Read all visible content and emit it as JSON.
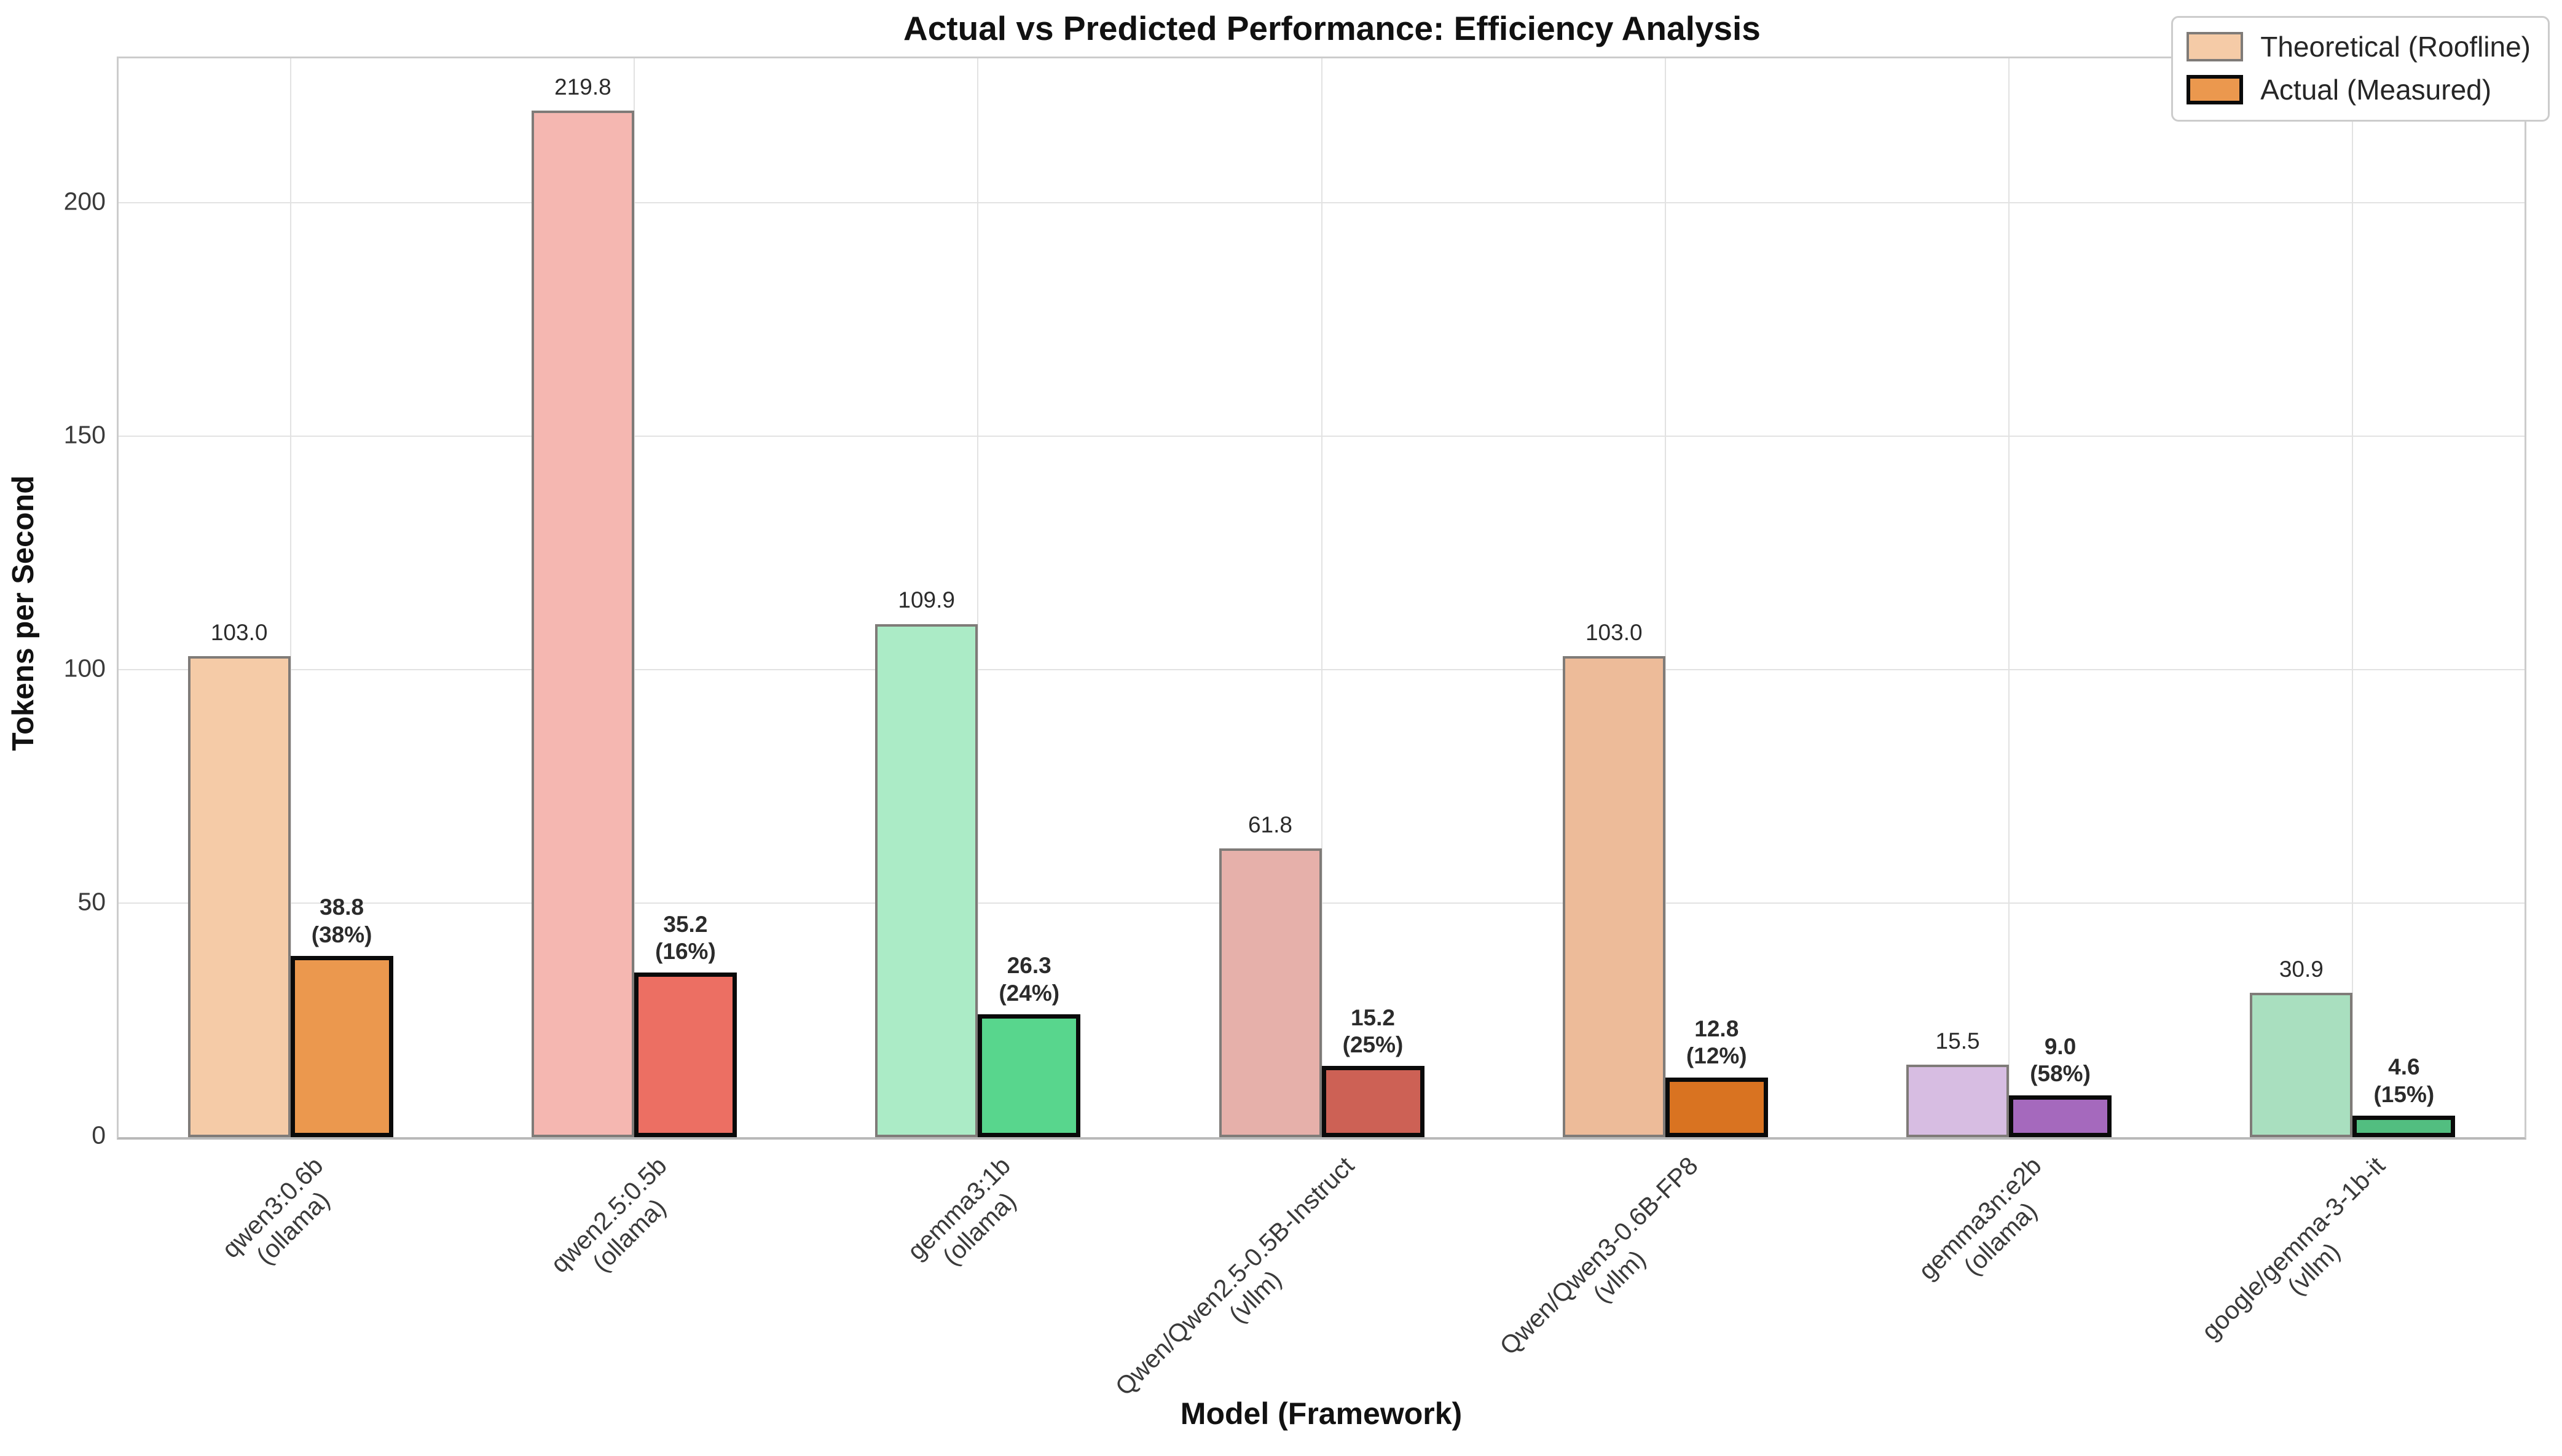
{
  "title": "Actual vs Predicted Performance: Efficiency Analysis",
  "axes": {
    "ylabel": "Tokens per Second",
    "xlabel": "Model (Framework)",
    "ytick_labels": [
      "0",
      "50",
      "100",
      "150",
      "200"
    ],
    "yticks": [
      0,
      50,
      100,
      150,
      200
    ],
    "ymax": 231
  },
  "legend": {
    "items": [
      {
        "label": "Theoretical (Roofline)",
        "fill": "#F5CBA7",
        "border": "#7f7b78"
      },
      {
        "label": "Actual (Measured)",
        "fill": "#EB984E",
        "border": "#0a0a0a"
      }
    ]
  },
  "chart_data": {
    "type": "bar",
    "title": "Actual vs Predicted Performance: Efficiency Analysis",
    "xlabel": "Model (Framework)",
    "ylabel": "Tokens per Second",
    "ylim": [
      0,
      231
    ],
    "grid": true,
    "legend_position": "upper right",
    "categories": [
      "qwen3:0.6b (ollama)",
      "qwen2.5:0.5b (ollama)",
      "gemma3:1b (ollama)",
      "Qwen/Qwen2.5-0.5B-Instruct (vllm)",
      "Qwen/Qwen3-0.6B-FP8 (vllm)",
      "gemma3n:e2b (ollama)",
      "google/gemma-3-1b-it (vllm)"
    ],
    "series": [
      {
        "name": "Theoretical (Roofline)",
        "values": [
          103.0,
          219.8,
          109.9,
          61.8,
          103.0,
          15.5,
          30.9
        ]
      },
      {
        "name": "Actual (Measured)",
        "values": [
          38.8,
          35.2,
          26.3,
          15.2,
          12.8,
          9.0,
          4.6
        ]
      }
    ],
    "groups": [
      {
        "model": "qwen3:0.6b",
        "framework": "ollama",
        "theoretical": 103.0,
        "actual": 38.8,
        "pct": "38%",
        "theo_fill": "#F5CBA7",
        "actual_fill": "#EB984E"
      },
      {
        "model": "qwen2.5:0.5b",
        "framework": "ollama",
        "theoretical": 219.8,
        "actual": 35.2,
        "pct": "16%",
        "theo_fill": "#F5B7B1",
        "actual_fill": "#EC6F63"
      },
      {
        "model": "gemma3:1b",
        "framework": "ollama",
        "theoretical": 109.9,
        "actual": 26.3,
        "pct": "24%",
        "theo_fill": "#ABEBC6",
        "actual_fill": "#58D68D"
      },
      {
        "model": "Qwen/Qwen2.5-0.5B-Instruct",
        "framework": "vllm",
        "theoretical": 61.8,
        "actual": 15.2,
        "pct": "25%",
        "theo_fill": "#E6B0AA",
        "actual_fill": "#CD6155"
      },
      {
        "model": "Qwen/Qwen3-0.6B-FP8",
        "framework": "vllm",
        "theoretical": 103.0,
        "actual": 12.8,
        "pct": "12%",
        "theo_fill": "#EDBB99",
        "actual_fill": "#D97321"
      },
      {
        "model": "gemma3n:e2b",
        "framework": "ollama",
        "theoretical": 15.5,
        "actual": 9.0,
        "pct": "58%",
        "theo_fill": "#D7BDE2",
        "actual_fill": "#A569BD"
      },
      {
        "model": "google/gemma-3-1b-it",
        "framework": "vllm",
        "theoretical": 30.9,
        "actual": 4.6,
        "pct": "15%",
        "theo_fill": "#A9DFBF",
        "actual_fill": "#52BE80"
      }
    ]
  }
}
